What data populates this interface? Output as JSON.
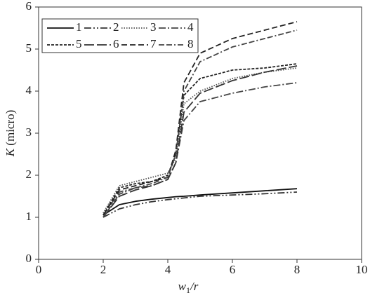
{
  "chart_data": {
    "type": "line",
    "xlabel": [
      "w",
      "1",
      "/r"
    ],
    "ylabel": [
      "K",
      " (micro)"
    ],
    "x": [
      2,
      2.5,
      3,
      3.5,
      4,
      4.25,
      4.5,
      5,
      6,
      7,
      8
    ],
    "series": [
      {
        "name": "1",
        "color": "#111111",
        "dash": "none",
        "values": [
          1.05,
          1.3,
          1.38,
          1.43,
          1.47,
          1.49,
          1.5,
          1.53,
          1.58,
          1.63,
          1.68
        ]
      },
      {
        "name": "2",
        "color": "#333333",
        "dash": "10 3 2 3 2 3",
        "values": [
          1.0,
          1.2,
          1.3,
          1.37,
          1.42,
          1.44,
          1.46,
          1.5,
          1.53,
          1.56,
          1.6
        ]
      },
      {
        "name": "3",
        "color": "#555555",
        "dash": "1.5 2",
        "values": [
          1.1,
          1.75,
          1.85,
          1.95,
          2.05,
          2.4,
          3.7,
          4.0,
          4.3,
          4.45,
          4.55
        ]
      },
      {
        "name": "4",
        "color": "#444444",
        "dash": "10 3 2 3",
        "values": [
          1.05,
          1.6,
          1.7,
          1.75,
          1.9,
          2.3,
          3.3,
          3.75,
          3.95,
          4.1,
          4.2
        ]
      },
      {
        "name": "5",
        "color": "#222222",
        "dash": "4 2",
        "values": [
          1.05,
          1.7,
          1.8,
          1.85,
          2.0,
          2.5,
          3.9,
          4.3,
          4.5,
          4.55,
          4.65
        ]
      },
      {
        "name": "6",
        "color": "#333333",
        "dash": "14 4",
        "values": [
          1.0,
          1.5,
          1.65,
          1.75,
          1.9,
          2.3,
          3.5,
          3.95,
          4.25,
          4.45,
          4.6
        ]
      },
      {
        "name": "7",
        "color": "#222222",
        "dash": "8 4",
        "values": [
          1.05,
          1.65,
          1.75,
          1.85,
          1.95,
          2.6,
          4.2,
          4.9,
          5.25,
          5.45,
          5.65
        ]
      },
      {
        "name": "8",
        "color": "#444444",
        "dash": "8 3 8 3 2 3",
        "values": [
          1.0,
          1.55,
          1.7,
          1.8,
          1.95,
          2.5,
          4.0,
          4.7,
          5.05,
          5.25,
          5.45
        ]
      }
    ],
    "xlim": [
      0,
      10
    ],
    "xticks": [
      0,
      2,
      4,
      6,
      8,
      10
    ],
    "ylim": [
      0,
      6
    ],
    "yticks": [
      0,
      1,
      2,
      3,
      4,
      5,
      6
    ],
    "grid": false
  }
}
